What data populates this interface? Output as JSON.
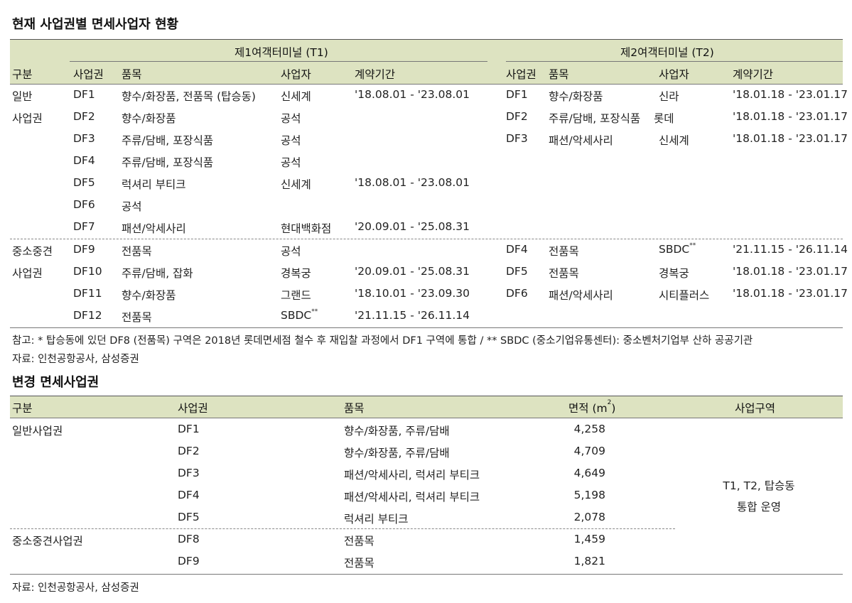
{
  "table1": {
    "title": "현재 사업권별 면세사업자 현황",
    "t1_header": "제1여객터미널 (T1)",
    "t2_header": "제2여객터미널 (T2)",
    "col_category": "구분",
    "cols": {
      "zone": "사업권",
      "items": "품목",
      "operator": "사업자",
      "period": "계약기간"
    },
    "general_label_1": "일반",
    "general_label_2": "사업권",
    "sme_label_1": "중소중견",
    "sme_label_2": "사업권",
    "t1_general": [
      {
        "zone": "DF1",
        "items": "향수/화장품, 전품목 (탑승동)",
        "operator": "신세계",
        "period": "'18.08.01 - '23.08.01"
      },
      {
        "zone": "DF2",
        "items": "향수/화장품",
        "operator": "공석",
        "period": ""
      },
      {
        "zone": "DF3",
        "items": "주류/담배, 포장식품",
        "operator": "공석",
        "period": ""
      },
      {
        "zone": "DF4",
        "items": "주류/담배, 포장식품",
        "operator": "공석",
        "period": ""
      },
      {
        "zone": "DF5",
        "items": "럭셔리 부티크",
        "operator": "신세계",
        "period": "'18.08.01 - '23.08.01"
      },
      {
        "zone": "DF6",
        "items": "공석",
        "operator": "",
        "period": ""
      },
      {
        "zone": "DF7",
        "items": "패션/악세사리",
        "operator": "현대백화점",
        "period": "'20.09.01 - '25.08.31"
      }
    ],
    "t2_general": [
      {
        "zone": "DF1",
        "items": "향수/화장품",
        "operator": "신라",
        "period": "'18.01.18 - '23.01.17"
      },
      {
        "zone": "DF2",
        "items": "주류/담배, 포장식품",
        "operator": "롯데",
        "period": "'18.01.18 - '23.01.17"
      },
      {
        "zone": "DF3",
        "items": "패션/악세사리",
        "operator": "신세계",
        "period": "'18.01.18 - '23.01.17"
      }
    ],
    "t1_sme": [
      {
        "zone": "DF9",
        "items": "전품목",
        "operator": "공석",
        "period": ""
      },
      {
        "zone": "DF10",
        "items": "주류/담배, 잡화",
        "operator": "경복궁",
        "period": "'20.09.01 - '25.08.31"
      },
      {
        "zone": "DF11",
        "items": "향수/화장품",
        "operator": "그랜드",
        "period": "'18.10.01 - '23.09.30"
      },
      {
        "zone": "DF12",
        "items": "전품목",
        "operator": "SBDC",
        "period": "'21.11.15 - '26.11.14"
      }
    ],
    "t2_sme": [
      {
        "zone": "DF4",
        "items": "전품목",
        "operator": "SBDC",
        "period": "'21.11.15 - '26.11.14"
      },
      {
        "zone": "DF5",
        "items": "전품목",
        "operator": "경복궁",
        "period": "'18.01.18 - '23.01.17"
      },
      {
        "zone": "DF6",
        "items": "패션/악세사리",
        "operator": "시티플러스",
        "period": "'18.01.18 - '23.01.17"
      }
    ],
    "sbdc_mark": "**",
    "note": "참고: * 탑승동에 있던 DF8 (전품목) 구역은 2018년 롯데면세점 철수 후 재입찰 과정에서 DF1 구역에 통합 / ** SBDC (중소기업유통센터): 중소벤처기업부 산하 공공기관",
    "source": "자료: 인천공항공사, 삼성증권"
  },
  "table2": {
    "title": "변경 면세사업권",
    "cols": {
      "category": "구분",
      "zone": "사업권",
      "items": "품목",
      "area": "면적 (m",
      "area_sup": "2",
      "area_close": ")",
      "region": "사업구역"
    },
    "general_label": "일반사업권",
    "sme_label": "중소중견사업권",
    "rows_general": [
      {
        "zone": "DF1",
        "items": "향수/화장품, 주류/담배",
        "area": "4,258"
      },
      {
        "zone": "DF2",
        "items": "향수/화장품, 주류/담배",
        "area": "4,709"
      },
      {
        "zone": "DF3",
        "items": "패션/악세사리, 럭셔리 부티크",
        "area": "4,649"
      },
      {
        "zone": "DF4",
        "items": "패션/악세사리, 럭셔리 부티크",
        "area": "5,198"
      },
      {
        "zone": "DF5",
        "items": "럭셔리 부티크",
        "area": "2,078"
      }
    ],
    "rows_sme": [
      {
        "zone": "DF8",
        "items": "전품목",
        "area": "1,459"
      },
      {
        "zone": "DF9",
        "items": "전품목",
        "area": "1,821"
      }
    ],
    "region_line1": "T1, T2, 탑승동",
    "region_line2": "통합 운영",
    "source": "자료: 인천공항공사, 삼성증권"
  }
}
